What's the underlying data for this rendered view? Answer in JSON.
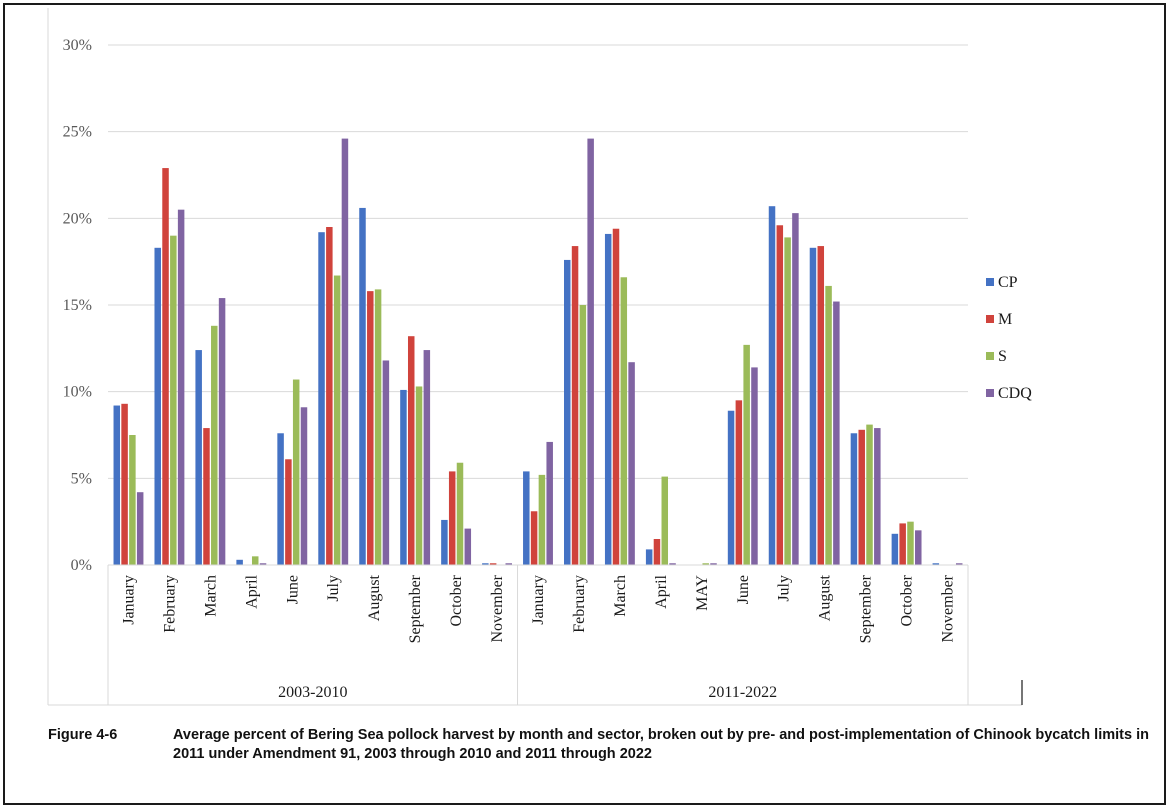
{
  "caption": {
    "number": "Figure 4-6",
    "text": "Average percent of Bering Sea pollock harvest by month and sector, broken out by pre- and post-implementation of Chinook bycatch limits in 2011 under Amendment 91, 2003 through 2010 and 2011 through 2022"
  },
  "chart_data": {
    "type": "bar",
    "y_ticks": [
      "0%",
      "5%",
      "10%",
      "15%",
      "20%",
      "25%",
      "30%"
    ],
    "ylim": [
      0,
      30
    ],
    "grid": true,
    "legend_position": "right",
    "groups": [
      {
        "name": "2003-2010",
        "categories": [
          "January",
          "February",
          "March",
          "April",
          "June",
          "July",
          "August",
          "September",
          "October",
          "November"
        ]
      },
      {
        "name": "2011-2022",
        "categories": [
          "January",
          "February",
          "March",
          "April",
          "MAY",
          "June",
          "July",
          "August",
          "September",
          "October",
          "November"
        ]
      }
    ],
    "series": [
      {
        "name": "CP",
        "color": "#4472c4",
        "values": [
          9.2,
          18.3,
          12.4,
          0.3,
          7.6,
          19.2,
          20.6,
          10.1,
          2.6,
          0.1,
          5.4,
          17.6,
          19.1,
          0.9,
          0.0,
          8.9,
          20.7,
          18.3,
          7.6,
          1.8,
          0.1
        ]
      },
      {
        "name": "M",
        "color": "#d0433c",
        "values": [
          9.3,
          22.9,
          7.9,
          0.0,
          6.1,
          19.5,
          15.8,
          13.2,
          5.4,
          0.1,
          3.1,
          18.4,
          19.4,
          1.5,
          0.0,
          9.5,
          19.6,
          18.4,
          7.8,
          2.4,
          0.0
        ]
      },
      {
        "name": "S",
        "color": "#9bbb59",
        "values": [
          7.5,
          19.0,
          13.8,
          0.5,
          10.7,
          16.7,
          15.9,
          10.3,
          5.9,
          0.0,
          5.2,
          15.0,
          16.6,
          5.1,
          0.1,
          12.7,
          18.9,
          16.1,
          8.1,
          2.5,
          0.0
        ]
      },
      {
        "name": "CDQ",
        "color": "#8064a2",
        "values": [
          4.2,
          20.5,
          15.4,
          0.1,
          9.1,
          24.6,
          11.8,
          12.4,
          2.1,
          0.1,
          7.1,
          24.6,
          11.7,
          0.1,
          0.1,
          11.4,
          20.3,
          15.2,
          7.9,
          2.0,
          0.1
        ]
      }
    ]
  }
}
